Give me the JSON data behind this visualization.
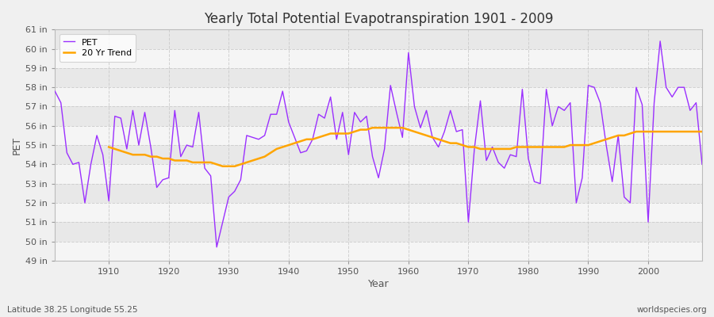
{
  "title": "Yearly Total Potential Evapotranspiration 1901 - 2009",
  "ylabel": "PET",
  "xlabel": "Year",
  "footer_left": "Latitude 38.25 Longitude 55.25",
  "footer_right": "worldspecies.org",
  "pet_color": "#9B30FF",
  "trend_color": "#FFA500",
  "bg_color": "#F0F0F0",
  "plot_bg_color_light": "#F5F5F5",
  "plot_bg_color_dark": "#E8E8E8",
  "grid_color": "#CCCCCC",
  "ylim_min": 49,
  "ylim_max": 61,
  "years": [
    1901,
    1902,
    1903,
    1904,
    1905,
    1906,
    1907,
    1908,
    1909,
    1910,
    1911,
    1912,
    1913,
    1914,
    1915,
    1916,
    1917,
    1918,
    1919,
    1920,
    1921,
    1922,
    1923,
    1924,
    1925,
    1926,
    1927,
    1928,
    1929,
    1930,
    1931,
    1932,
    1933,
    1934,
    1935,
    1936,
    1937,
    1938,
    1939,
    1940,
    1941,
    1942,
    1943,
    1944,
    1945,
    1946,
    1947,
    1948,
    1949,
    1950,
    1951,
    1952,
    1953,
    1954,
    1955,
    1956,
    1957,
    1958,
    1959,
    1960,
    1961,
    1962,
    1963,
    1964,
    1965,
    1966,
    1967,
    1968,
    1969,
    1970,
    1971,
    1972,
    1973,
    1974,
    1975,
    1976,
    1977,
    1978,
    1979,
    1980,
    1981,
    1982,
    1983,
    1984,
    1985,
    1986,
    1987,
    1988,
    1989,
    1990,
    1991,
    1992,
    1993,
    1994,
    1995,
    1996,
    1997,
    1998,
    1999,
    2000,
    2001,
    2002,
    2003,
    2004,
    2005,
    2006,
    2007,
    2008,
    2009
  ],
  "pet_values": [
    57.8,
    57.2,
    54.6,
    54.0,
    54.1,
    52.0,
    54.0,
    55.5,
    54.5,
    52.1,
    56.5,
    56.4,
    54.8,
    56.8,
    55.0,
    56.7,
    54.9,
    52.8,
    53.2,
    53.3,
    56.8,
    54.4,
    55.0,
    54.9,
    56.7,
    53.8,
    53.4,
    49.7,
    51.0,
    52.3,
    52.6,
    53.2,
    55.5,
    55.4,
    55.3,
    55.5,
    56.6,
    56.6,
    57.8,
    56.2,
    55.4,
    54.6,
    54.7,
    55.3,
    56.6,
    56.4,
    57.5,
    55.3,
    56.7,
    54.5,
    56.7,
    56.2,
    56.5,
    54.4,
    53.3,
    54.8,
    58.1,
    56.7,
    55.4,
    59.8,
    57.0,
    55.9,
    56.8,
    55.4,
    54.9,
    55.7,
    56.8,
    55.7,
    55.8,
    51.0,
    54.8,
    57.3,
    54.2,
    54.9,
    54.1,
    53.8,
    54.5,
    54.4,
    57.9,
    54.3,
    53.1,
    53.0,
    57.9,
    56.0,
    57.0,
    56.8,
    57.2,
    52.0,
    53.3,
    58.1,
    58.0,
    57.2,
    55.0,
    53.1,
    55.5,
    52.3,
    52.0,
    58.0,
    57.1,
    51.0,
    57.2,
    60.4,
    58.0,
    57.5,
    58.0,
    58.0,
    56.8,
    57.2,
    54.0
  ],
  "trend_years": [
    1910,
    1911,
    1912,
    1913,
    1914,
    1915,
    1916,
    1917,
    1918,
    1919,
    1920,
    1921,
    1922,
    1923,
    1924,
    1925,
    1926,
    1927,
    1928,
    1929,
    1930,
    1931,
    1932,
    1933,
    1934,
    1935,
    1936,
    1937,
    1938,
    1939,
    1940,
    1941,
    1942,
    1943,
    1944,
    1945,
    1946,
    1947,
    1948,
    1949,
    1950,
    1951,
    1952,
    1953,
    1954,
    1955,
    1956,
    1957,
    1958,
    1959,
    1960,
    1961,
    1962,
    1963,
    1964,
    1965,
    1966,
    1967,
    1968,
    1969,
    1970,
    1971,
    1972,
    1973,
    1974,
    1975,
    1976,
    1977,
    1978,
    1979,
    1980,
    1981,
    1982,
    1983,
    1984,
    1985,
    1986,
    1987,
    1988,
    1989,
    1990,
    1991,
    1992,
    1993,
    1994,
    1995,
    1996,
    1997,
    1998,
    1999,
    2000,
    2001,
    2002,
    2003,
    2004,
    2005,
    2006,
    2007,
    2008,
    2009
  ],
  "trend_values": [
    54.9,
    54.8,
    54.7,
    54.6,
    54.5,
    54.5,
    54.5,
    54.4,
    54.4,
    54.3,
    54.3,
    54.2,
    54.2,
    54.2,
    54.1,
    54.1,
    54.1,
    54.1,
    54.0,
    53.9,
    53.9,
    53.9,
    54.0,
    54.1,
    54.2,
    54.3,
    54.4,
    54.6,
    54.8,
    54.9,
    55.0,
    55.1,
    55.2,
    55.3,
    55.3,
    55.4,
    55.5,
    55.6,
    55.6,
    55.6,
    55.6,
    55.7,
    55.8,
    55.8,
    55.9,
    55.9,
    55.9,
    55.9,
    55.9,
    55.9,
    55.8,
    55.7,
    55.6,
    55.5,
    55.4,
    55.3,
    55.2,
    55.1,
    55.1,
    55.0,
    54.9,
    54.9,
    54.8,
    54.8,
    54.8,
    54.8,
    54.8,
    54.8,
    54.9,
    54.9,
    54.9,
    54.9,
    54.9,
    54.9,
    54.9,
    54.9,
    54.9,
    55.0,
    55.0,
    55.0,
    55.0,
    55.1,
    55.2,
    55.3,
    55.4,
    55.5,
    55.5,
    55.6,
    55.7,
    55.7,
    55.7,
    55.7,
    55.7,
    55.7,
    55.7,
    55.7,
    55.7,
    55.7,
    55.7,
    55.7
  ]
}
